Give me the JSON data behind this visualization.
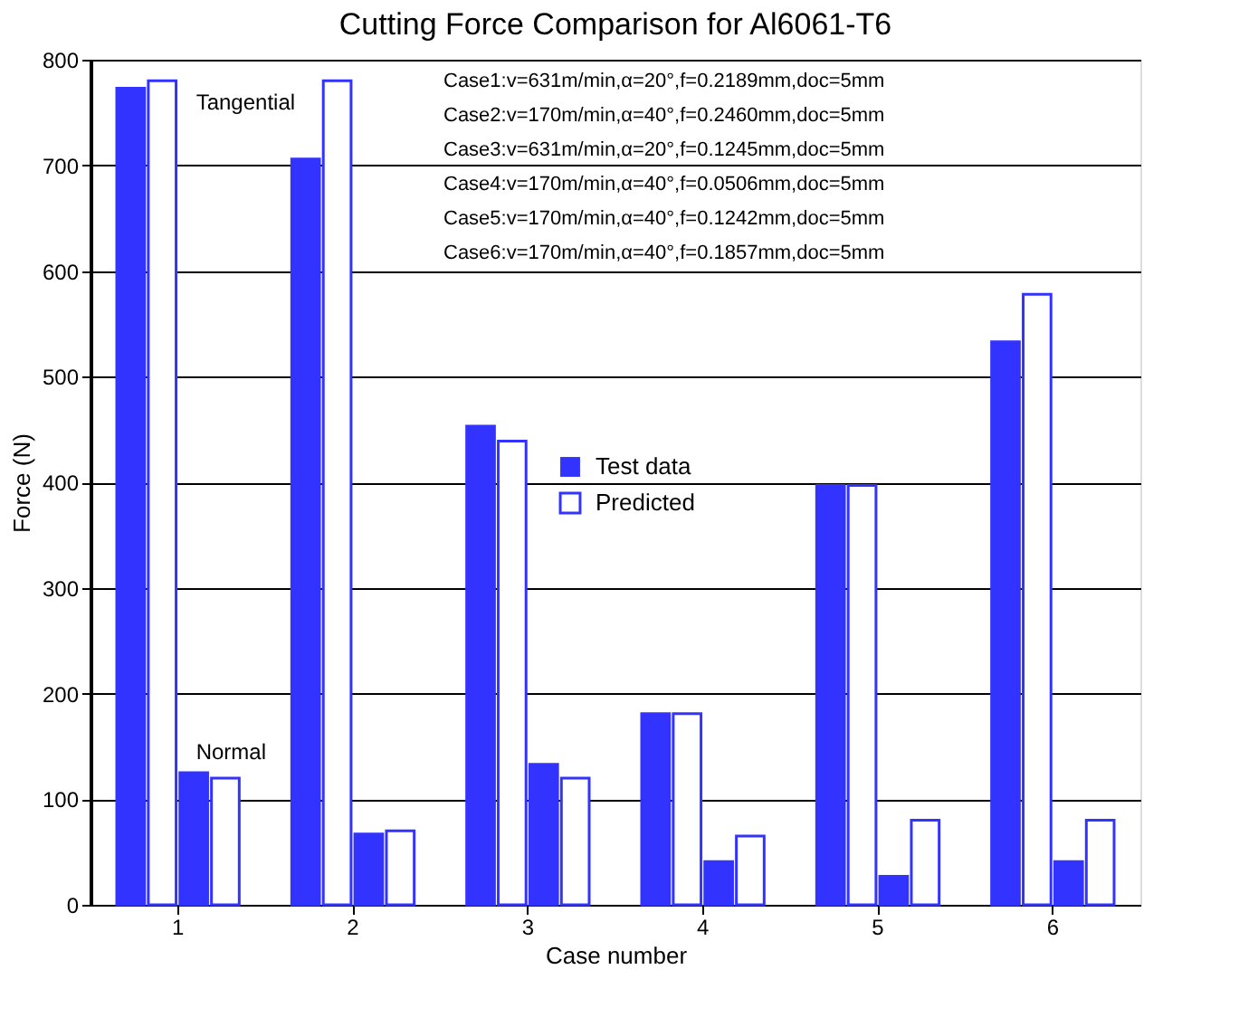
{
  "chart_data": {
    "type": "bar",
    "title": "Cutting Force Comparison for Al6061-T6",
    "xlabel": "Case number",
    "ylabel": "Force (N)",
    "categories": [
      "1",
      "2",
      "3",
      "4",
      "5",
      "6"
    ],
    "series": [
      {
        "name": "Test data",
        "color": "#3333ff",
        "values": [
          773,
          706,
          453,
          181,
          397,
          533
        ]
      },
      {
        "name": "Predicted",
        "color": "#3333ff",
        "values": [
          780,
          780,
          439,
          181,
          397,
          578
        ]
      },
      {
        "color": "#3333ff",
        "values": [
          125,
          67,
          133,
          41,
          27,
          41
        ]
      },
      {
        "color": "#3333ff",
        "values": [
          120,
          70,
          120,
          65,
          80,
          80
        ]
      }
    ],
    "ylim": [
      0,
      800
    ],
    "yticks": [
      0,
      100,
      200,
      300,
      400,
      500,
      600,
      700,
      800
    ],
    "grid": "y",
    "legend": "center",
    "annotations": [
      {
        "text": "Tangential",
        "x": "1",
        "y": 760
      },
      {
        "text": "Normal",
        "x": "1",
        "y": 145
      },
      "Case1:v=631m/min,α=20°,f=0.2189mm,doc=5mm",
      "Case2:v=170m/min,α=40°,f=0.2460mm,doc=5mm",
      "Case3:v=631m/min,α=20°,f=0.1245mm,doc=5mm",
      "Case4:v=170m/min,α=40°,f=0.0506mm,doc=5mm",
      "Case5:v=170m/min,α=40°,f=0.1242mm,doc=5mm",
      "Case6:v=170m/min,α=40°,f=0.1857mm,doc=5mm"
    ]
  }
}
